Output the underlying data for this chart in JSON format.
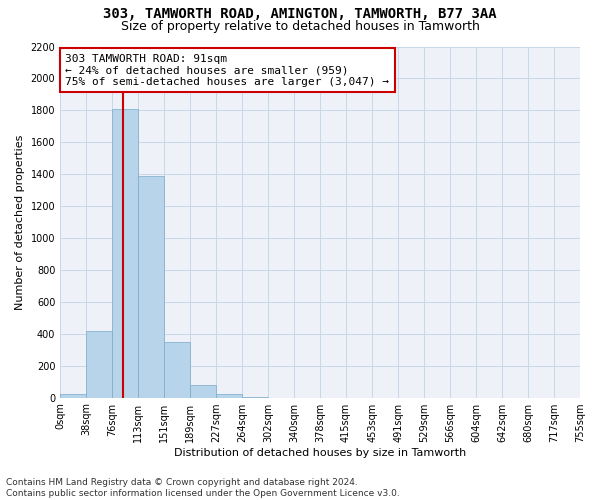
{
  "title": "303, TAMWORTH ROAD, AMINGTON, TAMWORTH, B77 3AA",
  "subtitle": "Size of property relative to detached houses in Tamworth",
  "xlabel": "Distribution of detached houses by size in Tamworth",
  "ylabel": "Number of detached properties",
  "bar_color": "#b8d4ea",
  "bar_edge_color": "#7aaac8",
  "grid_color": "#c8d8e8",
  "background_color": "#eef2f8",
  "annotation_box_color": "#cc0000",
  "annotation_line_color": "#cc0000",
  "annotation_line1": "303 TAMWORTH ROAD: 91sqm",
  "annotation_line2": "← 24% of detached houses are smaller (959)",
  "annotation_line3": "75% of semi-detached houses are larger (3,047) →",
  "property_value_sqm": 91,
  "bin_edges": [
    0,
    38,
    76,
    113,
    151,
    189,
    227,
    264,
    302,
    340,
    378,
    415,
    453,
    491,
    529,
    566,
    604,
    642,
    680,
    717,
    755
  ],
  "bin_counts": [
    20,
    420,
    1810,
    1390,
    350,
    80,
    25,
    5,
    0,
    0,
    0,
    0,
    0,
    0,
    0,
    0,
    0,
    0,
    0,
    0
  ],
  "ylim": [
    0,
    2200
  ],
  "yticks": [
    0,
    200,
    400,
    600,
    800,
    1000,
    1200,
    1400,
    1600,
    1800,
    2000,
    2200
  ],
  "footnote_line1": "Contains HM Land Registry data © Crown copyright and database right 2024.",
  "footnote_line2": "Contains public sector information licensed under the Open Government Licence v3.0.",
  "title_fontsize": 10,
  "subtitle_fontsize": 9,
  "xlabel_fontsize": 8,
  "ylabel_fontsize": 8,
  "tick_fontsize": 7,
  "annotation_fontsize": 8,
  "footnote_fontsize": 6.5
}
